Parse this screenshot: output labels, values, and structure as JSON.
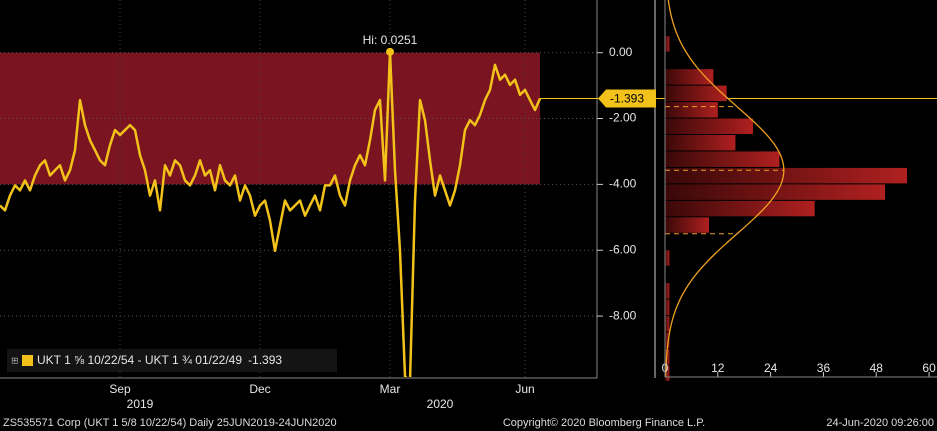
{
  "chart_data": [
    {
      "type": "line",
      "series": [
        {
          "name": "UKT 1 ⅝ 10/22/54 - UKT 1 ¾ 01/22/49",
          "color": "#f2c21b",
          "values": [
            -4.64,
            -4.79,
            -4.34,
            -4.03,
            -4.18,
            -3.88,
            -4.18,
            -3.73,
            -3.42,
            -3.27,
            -3.73,
            -3.57,
            -3.42,
            -3.88,
            -3.57,
            -2.96,
            -1.44,
            -2.2,
            -2.66,
            -2.96,
            -3.27,
            -3.42,
            -2.81,
            -2.35,
            -2.5,
            -2.35,
            -2.2,
            -2.35,
            -3.11,
            -3.57,
            -4.34,
            -3.88,
            -4.79,
            -3.42,
            -3.73,
            -3.27,
            -3.42,
            -3.88,
            -4.03,
            -3.73,
            -3.27,
            -3.73,
            -3.57,
            -4.18,
            -3.42,
            -3.88,
            -4.03,
            -3.73,
            -4.49,
            -4.03,
            -4.34,
            -4.95,
            -4.64,
            -4.49,
            -5.1,
            -6.02,
            -5.25,
            -4.49,
            -4.79,
            -4.64,
            -4.49,
            -4.95,
            -4.64,
            -4.34,
            -4.79,
            -4.03,
            -4.03,
            -3.73,
            -4.34,
            -4.64,
            -3.88,
            -3.42,
            -3.11,
            -3.42,
            -2.66,
            -1.74,
            -1.44,
            -3.88,
            0.0251,
            -3.57,
            -6.02,
            -9.83,
            -9.98,
            -4.49,
            -1.44,
            -2.05,
            -3.27,
            -4.34,
            -3.73,
            -4.18,
            -4.64,
            -4.18,
            -3.42,
            -2.35,
            -2.05,
            -2.2,
            -1.89,
            -1.44,
            -1.13,
            -0.37,
            -0.82,
            -0.67,
            -0.98,
            -0.82,
            -1.28,
            -1.13,
            -1.44,
            -1.74,
            -1.393
          ]
        }
      ],
      "categories": [
        null,
        null,
        null,
        null,
        null,
        null,
        null,
        null,
        null,
        null,
        null,
        null,
        null,
        null,
        null,
        null,
        null,
        null,
        null,
        null,
        null,
        null,
        null,
        null,
        "Sep",
        null,
        null,
        null,
        null,
        null,
        null,
        null,
        null,
        null,
        null,
        null,
        null,
        null,
        null,
        null,
        null,
        null,
        null,
        null,
        null,
        null,
        null,
        null,
        null,
        null,
        null,
        null,
        "Dec",
        null,
        null,
        null,
        null,
        null,
        null,
        null,
        null,
        null,
        null,
        null,
        null,
        null,
        null,
        null,
        null,
        null,
        null,
        null,
        null,
        null,
        null,
        null,
        null,
        null,
        "Mar",
        null,
        null,
        null,
        null,
        null,
        null,
        null,
        null,
        null,
        null,
        null,
        null,
        null,
        null,
        null,
        null,
        null,
        null,
        null,
        null,
        null,
        null,
        null,
        null,
        null,
        null,
        "Jun",
        null,
        null,
        null
      ],
      "year_labels": [
        null,
        null,
        null,
        null,
        null,
        null,
        null,
        null,
        null,
        null,
        null,
        null,
        null,
        null,
        null,
        null,
        null,
        null,
        null,
        null,
        null,
        null,
        null,
        null,
        null,
        null,
        null,
        null,
        "2019",
        null,
        null,
        null,
        null,
        null,
        null,
        null,
        null,
        null,
        null,
        null,
        null,
        null,
        null,
        null,
        null,
        null,
        null,
        null,
        null,
        null,
        null,
        null,
        null,
        null,
        null,
        null,
        null,
        null,
        null,
        null,
        null,
        null,
        null,
        null,
        null,
        null,
        null,
        null,
        null,
        null,
        null,
        null,
        null,
        null,
        null,
        null,
        null,
        null,
        null,
        null,
        null,
        null,
        null,
        null,
        null,
        null,
        null,
        null,
        "2020",
        null,
        null,
        null,
        null,
        null,
        null,
        null,
        null,
        null,
        null,
        null,
        null,
        null,
        null,
        null,
        null,
        null,
        null,
        null,
        null,
        null
      ],
      "band": {
        "from": -4,
        "to": 0,
        "color": "#7a1420"
      },
      "hi_label": "Hi: 0.0251",
      "ylim": [
        -9.85,
        1.6
      ],
      "yticks": [
        {
          "value": 0,
          "label": "0.00"
        },
        {
          "value": -2,
          "label": "-2.00"
        },
        {
          "value": -4,
          "label": "-4.00"
        },
        {
          "value": -6,
          "label": "-6.00"
        },
        {
          "value": -8,
          "label": "-8.00"
        }
      ],
      "grid": true
    },
    {
      "type": "histogram",
      "orientation": "horizontal",
      "color": "#a01c1c",
      "bins": [
        0.5,
        0,
        -0.5,
        -1,
        -1.5,
        -2,
        -2.5,
        -3,
        -3.5,
        -4,
        -4.5,
        -5,
        -5.5,
        -6,
        -6.5,
        -7,
        -7.5,
        -8,
        -8.5,
        -9,
        -9.5,
        -10
      ],
      "counts": [
        1,
        0,
        11,
        14,
        12,
        20,
        16,
        26,
        55,
        50,
        34,
        10,
        0,
        1,
        0,
        1,
        1,
        1,
        1,
        1,
        1
      ],
      "normal": {
        "mean": -3.57,
        "sd": 1.93,
        "peak": 27,
        "color": "#f0a020"
      },
      "xlim": [
        0,
        61.8
      ],
      "xticks": [
        0,
        12,
        24,
        36,
        48,
        60
      ]
    }
  ],
  "footer": {
    "left": "ZS535571 Corp (UKT 1 5/8 10/22/54)  Daily 25JUN2019-24JUN2020",
    "center": "Copyright© 2020 Bloomberg Finance L.P.",
    "right": "24-Jun-2020 09:26:00"
  }
}
